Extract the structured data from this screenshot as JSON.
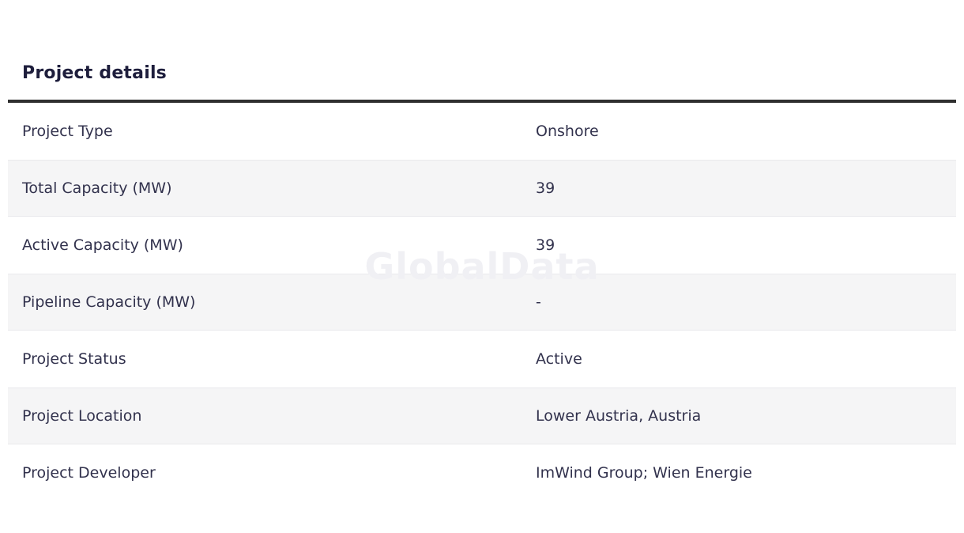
{
  "page": {
    "watermark": "GlobalData"
  },
  "section": {
    "title": "Project details"
  },
  "table": {
    "rows": [
      {
        "label": "Project Type",
        "value": "Onshore"
      },
      {
        "label": "Total Capacity (MW)",
        "value": "39"
      },
      {
        "label": "Active Capacity (MW)",
        "value": "39"
      },
      {
        "label": "Pipeline Capacity (MW)",
        "value": "-"
      },
      {
        "label": "Project Status",
        "value": "Active"
      },
      {
        "label": "Project Location",
        "value": "Lower Austria, Austria"
      },
      {
        "label": "Project Developer",
        "value": "ImWind Group; Wien Energie"
      }
    ]
  },
  "colors": {
    "title": "#1e1e3c",
    "rule": "#2f2f2f",
    "text": "#32324d",
    "stripe": "#f5f5f6",
    "stripe_edge": "#e9e9ec",
    "watermark": "#f0f0f4"
  }
}
